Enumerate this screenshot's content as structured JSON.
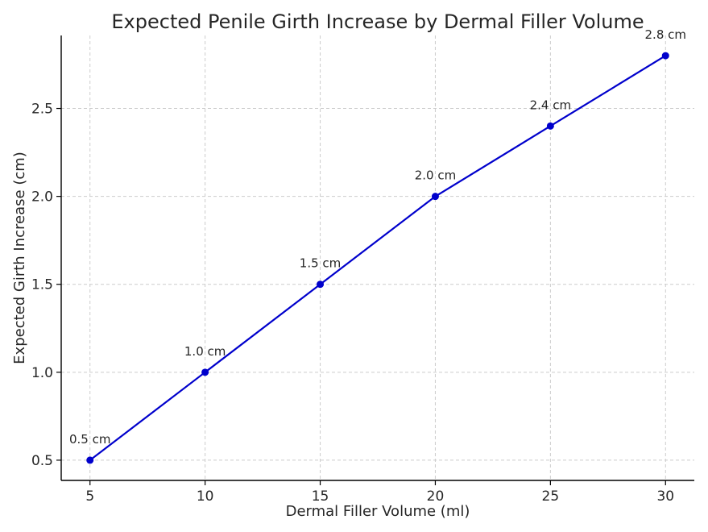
{
  "chart_data": {
    "type": "line",
    "title": "Expected Penile Girth Increase by Dermal Filler Volume",
    "xlabel": "Dermal Filler Volume (ml)",
    "ylabel": "Expected Girth Increase (cm)",
    "x": [
      5,
      10,
      15,
      20,
      25,
      30
    ],
    "series": [
      {
        "values": [
          0.5,
          1.0,
          1.5,
          2.0,
          2.4,
          2.8
        ],
        "labels": [
          "0.5 cm",
          "1.0 cm",
          "1.5 cm",
          "2.0 cm",
          "2.4 cm",
          "2.8 cm"
        ],
        "color": "#0000cc",
        "marker": "circle"
      }
    ],
    "xticks": [
      5,
      10,
      15,
      20,
      25,
      30
    ],
    "xtick_labels": [
      "5",
      "10",
      "15",
      "20",
      "25",
      "30"
    ],
    "yticks": [
      0.5,
      1.0,
      1.5,
      2.0,
      2.5
    ],
    "ytick_labels": [
      "0.5",
      "1.0",
      "1.5",
      "2.0",
      "2.5"
    ],
    "xlim": [
      3.75,
      31.25
    ],
    "ylim": [
      0.385,
      2.915
    ],
    "grid": true,
    "grid_style": "dashed"
  }
}
